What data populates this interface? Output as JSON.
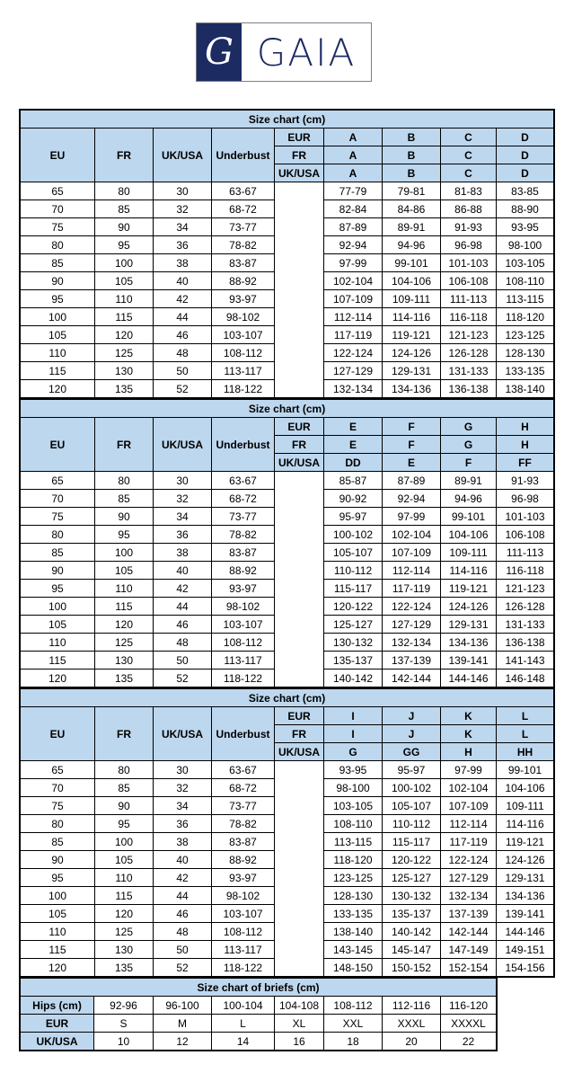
{
  "logo": {
    "monogram": "G",
    "wordmark": "GAIA",
    "color": "#1d2b63"
  },
  "header_color": "#bdd7ee",
  "base_headers": [
    "EU",
    "FR",
    "UK/USA",
    "Underbust"
  ],
  "system_labels": [
    "EUR",
    "FR",
    "UK/USA"
  ],
  "base_rows": [
    [
      "65",
      "80",
      "30",
      "63-67"
    ],
    [
      "70",
      "85",
      "32",
      "68-72"
    ],
    [
      "75",
      "90",
      "34",
      "73-77"
    ],
    [
      "80",
      "95",
      "36",
      "78-82"
    ],
    [
      "85",
      "100",
      "38",
      "83-87"
    ],
    [
      "90",
      "105",
      "40",
      "88-92"
    ],
    [
      "95",
      "110",
      "42",
      "93-97"
    ],
    [
      "100",
      "115",
      "44",
      "98-102"
    ],
    [
      "105",
      "120",
      "46",
      "103-107"
    ],
    [
      "110",
      "125",
      "48",
      "108-112"
    ],
    [
      "115",
      "130",
      "50",
      "113-117"
    ],
    [
      "120",
      "135",
      "52",
      "118-122"
    ]
  ],
  "tables": [
    {
      "title": "Size chart (cm)",
      "cups": [
        [
          "A",
          "B",
          "C",
          "D"
        ],
        [
          "A",
          "B",
          "C",
          "D"
        ],
        [
          "A",
          "B",
          "C",
          "D"
        ]
      ],
      "rows": [
        [
          "77-79",
          "79-81",
          "81-83",
          "83-85"
        ],
        [
          "82-84",
          "84-86",
          "86-88",
          "88-90"
        ],
        [
          "87-89",
          "89-91",
          "91-93",
          "93-95"
        ],
        [
          "92-94",
          "94-96",
          "96-98",
          "98-100"
        ],
        [
          "97-99",
          "99-101",
          "101-103",
          "103-105"
        ],
        [
          "102-104",
          "104-106",
          "106-108",
          "108-110"
        ],
        [
          "107-109",
          "109-111",
          "111-113",
          "113-115"
        ],
        [
          "112-114",
          "114-116",
          "116-118",
          "118-120"
        ],
        [
          "117-119",
          "119-121",
          "121-123",
          "123-125"
        ],
        [
          "122-124",
          "124-126",
          "126-128",
          "128-130"
        ],
        [
          "127-129",
          "129-131",
          "131-133",
          "133-135"
        ],
        [
          "132-134",
          "134-136",
          "136-138",
          "138-140"
        ]
      ]
    },
    {
      "title": "Size chart (cm)",
      "cups": [
        [
          "E",
          "F",
          "G",
          "H"
        ],
        [
          "E",
          "F",
          "G",
          "H"
        ],
        [
          "DD",
          "E",
          "F",
          "FF"
        ]
      ],
      "rows": [
        [
          "85-87",
          "87-89",
          "89-91",
          "91-93"
        ],
        [
          "90-92",
          "92-94",
          "94-96",
          "96-98"
        ],
        [
          "95-97",
          "97-99",
          "99-101",
          "101-103"
        ],
        [
          "100-102",
          "102-104",
          "104-106",
          "106-108"
        ],
        [
          "105-107",
          "107-109",
          "109-111",
          "111-113"
        ],
        [
          "110-112",
          "112-114",
          "114-116",
          "116-118"
        ],
        [
          "115-117",
          "117-119",
          "119-121",
          "121-123"
        ],
        [
          "120-122",
          "122-124",
          "124-126",
          "126-128"
        ],
        [
          "125-127",
          "127-129",
          "129-131",
          "131-133"
        ],
        [
          "130-132",
          "132-134",
          "134-136",
          "136-138"
        ],
        [
          "135-137",
          "137-139",
          "139-141",
          "141-143"
        ],
        [
          "140-142",
          "142-144",
          "144-146",
          "146-148"
        ]
      ]
    },
    {
      "title": "Size chart (cm)",
      "cups": [
        [
          "I",
          "J",
          "K",
          "L"
        ],
        [
          "I",
          "J",
          "K",
          "L"
        ],
        [
          "G",
          "GG",
          "H",
          "HH"
        ]
      ],
      "rows": [
        [
          "93-95",
          "95-97",
          "97-99",
          "99-101"
        ],
        [
          "98-100",
          "100-102",
          "102-104",
          "104-106"
        ],
        [
          "103-105",
          "105-107",
          "107-109",
          "109-111"
        ],
        [
          "108-110",
          "110-112",
          "112-114",
          "114-116"
        ],
        [
          "113-115",
          "115-117",
          "117-119",
          "119-121"
        ],
        [
          "118-120",
          "120-122",
          "122-124",
          "124-126"
        ],
        [
          "123-125",
          "125-127",
          "127-129",
          "129-131"
        ],
        [
          "128-130",
          "130-132",
          "132-134",
          "134-136"
        ],
        [
          "133-135",
          "135-137",
          "137-139",
          "139-141"
        ],
        [
          "138-140",
          "140-142",
          "142-144",
          "144-146"
        ],
        [
          "143-145",
          "145-147",
          "147-149",
          "149-151"
        ],
        [
          "148-150",
          "150-152",
          "152-154",
          "154-156"
        ]
      ]
    }
  ],
  "briefs": {
    "title": "Size chart of briefs (cm)",
    "rows": [
      {
        "label": "Hips (cm)",
        "values": [
          "92-96",
          "96-100",
          "100-104",
          "104-108",
          "108-112",
          "112-116",
          "116-120"
        ]
      },
      {
        "label": "EUR",
        "values": [
          "S",
          "M",
          "L",
          "XL",
          "XXL",
          "XXXL",
          "XXXXL"
        ]
      },
      {
        "label": "UK/USA",
        "values": [
          "10",
          "12",
          "14",
          "16",
          "18",
          "20",
          "22"
        ]
      }
    ]
  }
}
